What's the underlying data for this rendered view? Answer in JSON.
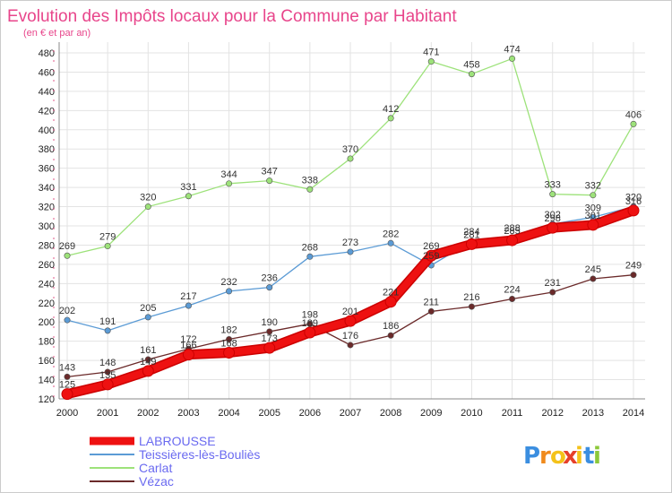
{
  "chart_data": {
    "type": "line",
    "title": "Evolution des Impôts locaux pour la Commune par Habitant",
    "subtitle": "(en € et par an)",
    "categories": [
      "2000",
      "2001",
      "2002",
      "2003",
      "2004",
      "2005",
      "2006",
      "2007",
      "2008",
      "2009",
      "2010",
      "2011",
      "2012",
      "2013",
      "2014"
    ],
    "ylim": [
      120,
      480
    ],
    "yticks": [
      120,
      140,
      160,
      180,
      200,
      220,
      240,
      260,
      280,
      300,
      320,
      340,
      360,
      380,
      400,
      420,
      440,
      460,
      480
    ],
    "grid": true,
    "legend_position": "bottom-left",
    "series": [
      {
        "name": "Carlat",
        "color": "#9de27a",
        "values": [
          269,
          279,
          320,
          331,
          344,
          347,
          338,
          370,
          412,
          471,
          458,
          474,
          333,
          332,
          406
        ]
      },
      {
        "name": "Teissières-lès-Bouliès",
        "color": "#5b9bd5",
        "values": [
          202,
          191,
          205,
          217,
          232,
          236,
          268,
          273,
          282,
          259,
          284,
          288,
          302,
          309,
          320
        ]
      },
      {
        "name": "Vézac",
        "color": "#6b2a2a",
        "values": [
          143,
          148,
          161,
          172,
          182,
          190,
          198,
          176,
          186,
          211,
          216,
          224,
          231,
          245,
          249
        ]
      },
      {
        "name": "LABROUSSE",
        "color": "#ee1111",
        "values": [
          125,
          135,
          149,
          166,
          168,
          173,
          189,
          201,
          221,
          269,
          281,
          285,
          298,
          301,
          316
        ]
      }
    ],
    "legend_order": [
      "LABROUSSE",
      "Teissières-lès-Bouliès",
      "Carlat",
      "Vézac"
    ],
    "legend_text_color": "#6a6af0"
  },
  "brand": {
    "letters": [
      "P",
      "r",
      "o",
      "x",
      "i",
      "t",
      "i"
    ],
    "colors": [
      "#3b8ee0",
      "#f08a1c",
      "#f4c21a",
      "#e6402a",
      "#f4c21a",
      "#3b8ee0",
      "#8cc83a"
    ]
  }
}
